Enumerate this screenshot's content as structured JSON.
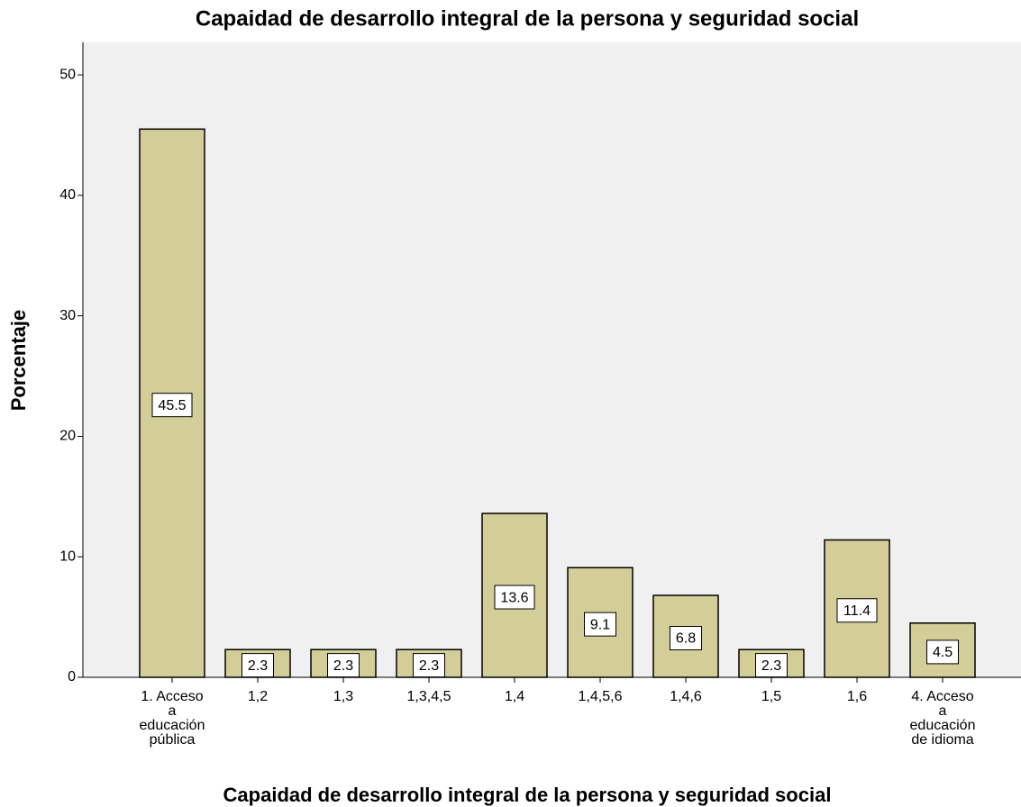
{
  "chart_data": {
    "type": "bar",
    "title": "Capaidad de desarrollo integral de la persona y seguridad social",
    "x_label": "Capaidad de desarrollo integral de la persona y seguridad social",
    "y_label": "Porcentaje",
    "categories": [
      "1. Acceso a educación pública",
      "1,2",
      "1,3",
      "1,3,4,5",
      "1,4",
      "1,4,5,6",
      "1,4,6",
      "1,5",
      "1,6",
      "4. Acceso a educación de idioma"
    ],
    "values": [
      45.5,
      2.3,
      2.3,
      2.3,
      13.6,
      9.1,
      6.8,
      2.3,
      11.4,
      4.5
    ],
    "color": "#d3ce97",
    "ylim": [
      0,
      52.7
    ],
    "yticks": [
      0,
      10,
      20,
      30,
      40,
      50
    ],
    "grid": false
  }
}
